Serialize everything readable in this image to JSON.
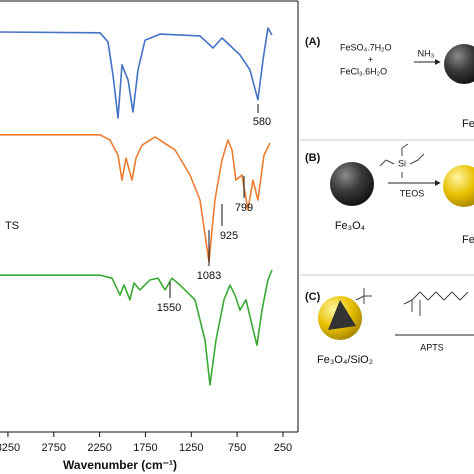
{
  "chart_data": {
    "type": "line",
    "x_label": "Wavenumber (cm⁻¹)",
    "xlim": [
      3500,
      86
    ],
    "xticks": [
      3250,
      2750,
      2250,
      1750,
      1250,
      750,
      250
    ],
    "ylim": [
      0,
      100
    ],
    "series": [
      {
        "color": "#4472c4",
        "x": [
          3336,
          2246,
          2158,
          2104,
          2049,
          2006,
          1940,
          1886,
          1831,
          1755,
          1591,
          1155,
          1013,
          915,
          719,
          610,
          523,
          468,
          414,
          370
        ],
        "values": [
          92.6,
          92.4,
          90.3,
          82.6,
          72.7,
          85.0,
          81.5,
          74.1,
          83.8,
          90.7,
          92.1,
          91.7,
          88.9,
          91.2,
          87.3,
          83.8,
          76.9,
          86.1,
          93.5,
          91.9
        ]
      },
      {
        "color": "#ed7d31",
        "x": [
          3336,
          2246,
          2137,
          2049,
          2006,
          1962,
          1897,
          1853,
          1788,
          1646,
          1428,
          1264,
          1155,
          1057,
          992,
          915,
          850,
          806,
          763,
          697,
          632,
          577,
          523,
          457,
          392
        ],
        "values": [
          68.8,
          68.8,
          67.6,
          64.1,
          58.3,
          63.4,
          58.3,
          63.4,
          66.4,
          68.3,
          65.3,
          59.5,
          53.7,
          39.4,
          53.7,
          63.0,
          67.6,
          65.3,
          58.3,
          59.5,
          51.4,
          58.3,
          53.7,
          64.1,
          66.9
        ]
      },
      {
        "color": "#3aaa35",
        "x": [
          3336,
          2246,
          2115,
          2028,
          1984,
          1919,
          1875,
          1810,
          1700,
          1613,
          1537,
          1460,
          1373,
          1209,
          1100,
          1046,
          980,
          893,
          828,
          773,
          719,
          653,
          588,
          534,
          479,
          414,
          370
        ],
        "values": [
          36.3,
          36.3,
          35.6,
          31.7,
          34.0,
          30.6,
          34.5,
          32.9,
          35.2,
          35.6,
          32.9,
          35.6,
          34.0,
          30.6,
          21.3,
          10.9,
          21.3,
          30.6,
          34.0,
          31.7,
          28.2,
          30.6,
          24.8,
          20.1,
          28.2,
          35.2,
          37.5
        ]
      }
    ],
    "annotations": [
      "580",
      "1083",
      "925",
      "799",
      "1550",
      "TS"
    ]
  },
  "scheme": {
    "a": "(A)",
    "feso4": "FeSO₄.7H₂O",
    "plus": "+",
    "fecl3": "FeCl₃.6H₂O",
    "nh3": "NH₃",
    "a_product": "Fe",
    "b": "(B)",
    "b_start": "Fe₃O₄",
    "si": "Si",
    "teos": "TEOS",
    "b_product": "Fe",
    "c": "(C)",
    "c_start": "Fe₃O₄/SiO₂",
    "apts": "APTS"
  }
}
